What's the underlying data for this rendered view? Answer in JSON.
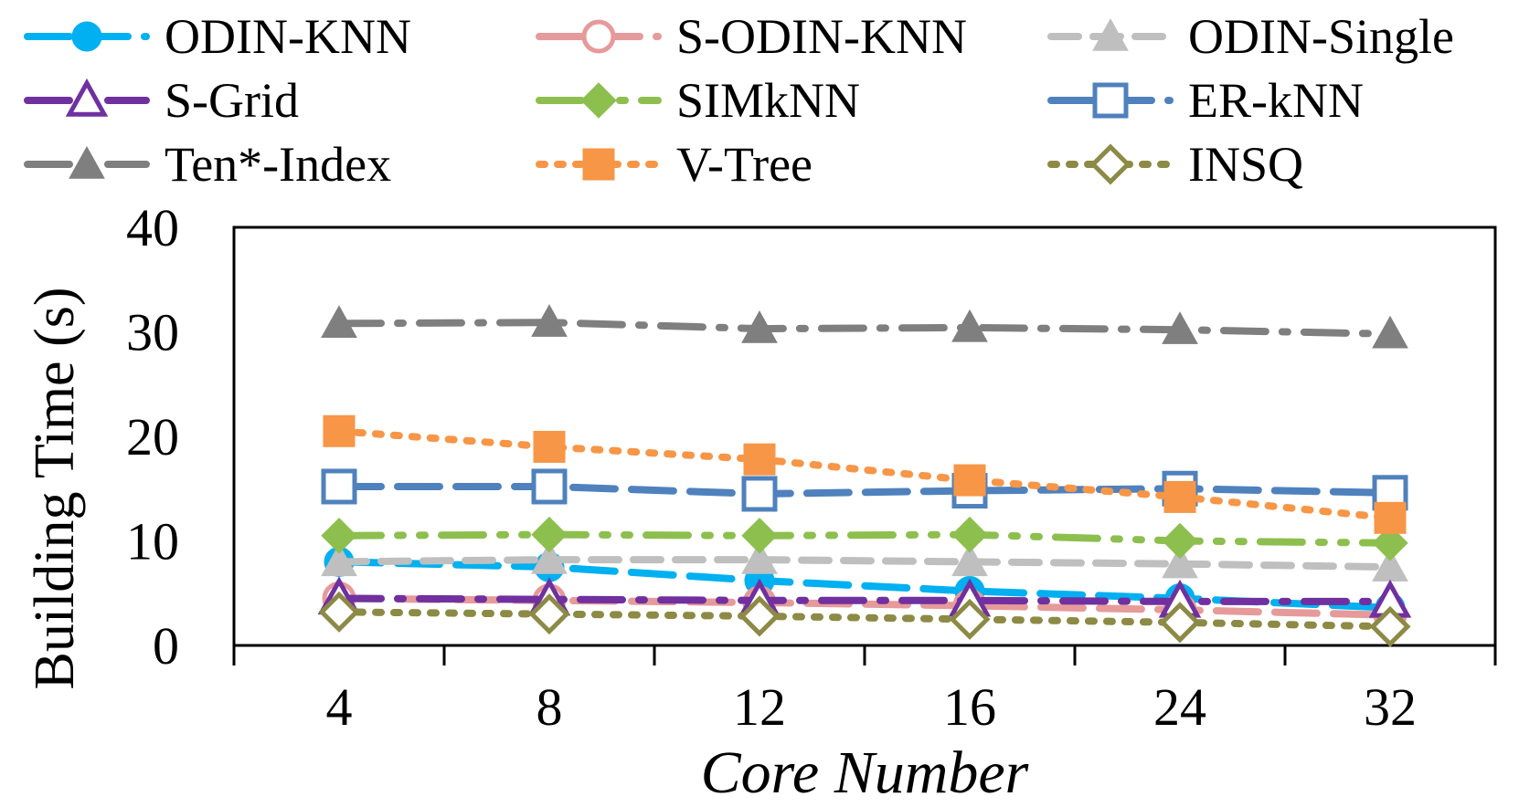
{
  "chart_data": {
    "type": "line",
    "title": "",
    "xlabel": "Core Number",
    "ylabel": "Building Time (s)",
    "categories": [
      "4",
      "8",
      "12",
      "16",
      "24",
      "32"
    ],
    "y_ticks": [
      "0",
      "10",
      "20",
      "30",
      "40"
    ],
    "ylim": [
      0,
      40
    ],
    "grid": false,
    "legend_position": "top",
    "series": [
      {
        "name": "ODIN-KNN",
        "values": [
          8.0,
          7.5,
          6.2,
          5.2,
          4.5,
          3.6
        ],
        "color": "#00b0f0",
        "marker": "circle-filled",
        "dash": "long-dash"
      },
      {
        "name": "S-ODIN-KNN",
        "values": [
          4.5,
          4.3,
          4.1,
          3.8,
          3.4,
          2.9
        ],
        "color": "#e69a9a",
        "marker": "circle-open",
        "dash": "long-dash"
      },
      {
        "name": "ODIN-Single",
        "values": [
          8.0,
          8.2,
          8.2,
          8.0,
          7.8,
          7.5
        ],
        "color": "#bfbfbf",
        "marker": "triangle-filled",
        "dash": "dash"
      },
      {
        "name": "S-Grid",
        "values": [
          4.5,
          4.4,
          4.3,
          4.3,
          4.2,
          4.2
        ],
        "color": "#7030a0",
        "marker": "triangle-open",
        "dash": "long-dash-dot"
      },
      {
        "name": "SIMkNN",
        "values": [
          10.5,
          10.6,
          10.5,
          10.6,
          10.0,
          9.8
        ],
        "color": "#8dbf4e",
        "marker": "diamond-filled",
        "dash": "long-dash-dot-dot"
      },
      {
        "name": "ER-kNN",
        "values": [
          15.2,
          15.2,
          14.5,
          14.8,
          15.0,
          14.6
        ],
        "color": "#4f81bd",
        "marker": "square-open",
        "dash": "long-dash"
      },
      {
        "name": "Ten*-Index",
        "values": [
          30.8,
          30.9,
          30.3,
          30.4,
          30.2,
          29.8
        ],
        "color": "#7f7f7f",
        "marker": "triangle-filled",
        "dash": "long-dash-dot"
      },
      {
        "name": "V-Tree",
        "values": [
          20.5,
          19.0,
          17.8,
          15.8,
          14.2,
          12.2
        ],
        "color": "#f79646",
        "marker": "square-filled",
        "dash": "dot"
      },
      {
        "name": "INSQ",
        "values": [
          3.2,
          3.0,
          2.8,
          2.5,
          2.2,
          1.8
        ],
        "color": "#8c8a45",
        "marker": "diamond-open",
        "dash": "dot"
      }
    ]
  }
}
